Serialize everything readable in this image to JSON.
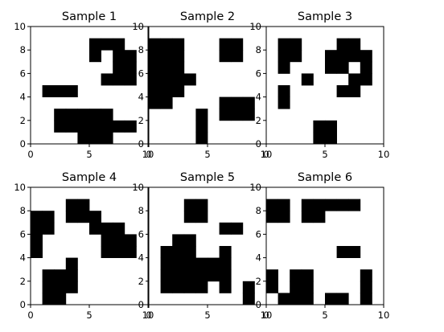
{
  "chart_data": {
    "type": "heatmap",
    "description_colors": {
      "filled": "#000000",
      "empty": "#ffffff",
      "axes": "#000000"
    },
    "panels": [
      {
        "title": "Sample 1",
        "xlim": [
          0,
          10
        ],
        "ylim": [
          0,
          10
        ],
        "xticks": [
          "0",
          "5",
          "10"
        ],
        "yticks": [
          "0",
          "2",
          "4",
          "6",
          "8",
          "10"
        ],
        "cells": [
          [
            5,
            8
          ],
          [
            6,
            8
          ],
          [
            7,
            8
          ],
          [
            5,
            7
          ],
          [
            7,
            7
          ],
          [
            8,
            7
          ],
          [
            7,
            6
          ],
          [
            8,
            6
          ],
          [
            6,
            5
          ],
          [
            7,
            5
          ],
          [
            8,
            5
          ],
          [
            1,
            4
          ],
          [
            2,
            4
          ],
          [
            3,
            4
          ],
          [
            2,
            2
          ],
          [
            3,
            2
          ],
          [
            4,
            2
          ],
          [
            5,
            2
          ],
          [
            6,
            2
          ],
          [
            2,
            1
          ],
          [
            3,
            1
          ],
          [
            4,
            1
          ],
          [
            5,
            1
          ],
          [
            6,
            1
          ],
          [
            7,
            1
          ],
          [
            8,
            1
          ],
          [
            4,
            0
          ],
          [
            5,
            0
          ],
          [
            6,
            0
          ]
        ]
      },
      {
        "title": "Sample 2",
        "xlim": [
          0,
          10
        ],
        "ylim": [
          0,
          10
        ],
        "xticks": [
          "0",
          "5",
          "10"
        ],
        "yticks": [
          "0",
          "2",
          "4",
          "6",
          "8",
          "10"
        ],
        "cells": [
          [
            0,
            8
          ],
          [
            1,
            8
          ],
          [
            2,
            8
          ],
          [
            6,
            8
          ],
          [
            7,
            8
          ],
          [
            0,
            7
          ],
          [
            1,
            7
          ],
          [
            2,
            7
          ],
          [
            6,
            7
          ],
          [
            7,
            7
          ],
          [
            0,
            6
          ],
          [
            1,
            6
          ],
          [
            2,
            6
          ],
          [
            0,
            5
          ],
          [
            1,
            5
          ],
          [
            2,
            5
          ],
          [
            3,
            5
          ],
          [
            0,
            4
          ],
          [
            1,
            4
          ],
          [
            2,
            4
          ],
          [
            0,
            3
          ],
          [
            1,
            3
          ],
          [
            6,
            3
          ],
          [
            7,
            3
          ],
          [
            8,
            3
          ],
          [
            6,
            2
          ],
          [
            7,
            2
          ],
          [
            8,
            2
          ],
          [
            4,
            2
          ],
          [
            4,
            1
          ],
          [
            4,
            0
          ]
        ]
      },
      {
        "title": "Sample 3",
        "xlim": [
          0,
          10
        ],
        "ylim": [
          0,
          10
        ],
        "xticks": [
          "0",
          "5",
          "10"
        ],
        "yticks": [
          "0",
          "2",
          "4",
          "6",
          "8",
          "10"
        ],
        "cells": [
          [
            1,
            8
          ],
          [
            2,
            8
          ],
          [
            6,
            8
          ],
          [
            7,
            8
          ],
          [
            1,
            7
          ],
          [
            2,
            7
          ],
          [
            5,
            7
          ],
          [
            6,
            7
          ],
          [
            7,
            7
          ],
          [
            8,
            7
          ],
          [
            1,
            6
          ],
          [
            5,
            6
          ],
          [
            6,
            6
          ],
          [
            8,
            6
          ],
          [
            3,
            5
          ],
          [
            7,
            5
          ],
          [
            8,
            5
          ],
          [
            6,
            4
          ],
          [
            7,
            4
          ],
          [
            1,
            4
          ],
          [
            1,
            3
          ],
          [
            4,
            1
          ],
          [
            5,
            1
          ],
          [
            4,
            0
          ],
          [
            5,
            0
          ]
        ]
      },
      {
        "title": "Sample 4",
        "xlim": [
          0,
          10
        ],
        "ylim": [
          0,
          10
        ],
        "xticks": [
          "0",
          "5",
          "10"
        ],
        "yticks": [
          "0",
          "2",
          "4",
          "6",
          "8",
          "10"
        ],
        "cells": [
          [
            3,
            8
          ],
          [
            4,
            8
          ],
          [
            0,
            7
          ],
          [
            1,
            7
          ],
          [
            3,
            7
          ],
          [
            4,
            7
          ],
          [
            5,
            7
          ],
          [
            0,
            6
          ],
          [
            1,
            6
          ],
          [
            5,
            6
          ],
          [
            6,
            6
          ],
          [
            7,
            6
          ],
          [
            0,
            5
          ],
          [
            6,
            5
          ],
          [
            7,
            5
          ],
          [
            8,
            5
          ],
          [
            0,
            4
          ],
          [
            6,
            4
          ],
          [
            7,
            4
          ],
          [
            8,
            4
          ],
          [
            3,
            3
          ],
          [
            1,
            2
          ],
          [
            2,
            2
          ],
          [
            3,
            2
          ],
          [
            1,
            1
          ],
          [
            2,
            1
          ],
          [
            3,
            1
          ],
          [
            1,
            0
          ],
          [
            2,
            0
          ]
        ]
      },
      {
        "title": "Sample 5",
        "xlim": [
          0,
          10
        ],
        "ylim": [
          0,
          10
        ],
        "xticks": [
          "0",
          "5",
          "10"
        ],
        "yticks": [
          "0",
          "2",
          "4",
          "6",
          "8",
          "10"
        ],
        "cells": [
          [
            3,
            8
          ],
          [
            4,
            8
          ],
          [
            3,
            7
          ],
          [
            4,
            7
          ],
          [
            6,
            6
          ],
          [
            7,
            6
          ],
          [
            2,
            5
          ],
          [
            3,
            5
          ],
          [
            1,
            4
          ],
          [
            2,
            4
          ],
          [
            3,
            4
          ],
          [
            6,
            4
          ],
          [
            1,
            3
          ],
          [
            2,
            3
          ],
          [
            3,
            3
          ],
          [
            4,
            3
          ],
          [
            5,
            3
          ],
          [
            6,
            3
          ],
          [
            1,
            2
          ],
          [
            2,
            2
          ],
          [
            3,
            2
          ],
          [
            4,
            2
          ],
          [
            5,
            2
          ],
          [
            6,
            2
          ],
          [
            1,
            1
          ],
          [
            2,
            1
          ],
          [
            3,
            1
          ],
          [
            4,
            1
          ],
          [
            6,
            1
          ],
          [
            8,
            1
          ],
          [
            8,
            0
          ]
        ]
      },
      {
        "title": "Sample 6",
        "xlim": [
          0,
          10
        ],
        "ylim": [
          0,
          10
        ],
        "xticks": [
          "0",
          "5",
          "10"
        ],
        "yticks": [
          "0",
          "2",
          "4",
          "6",
          "8",
          "10"
        ],
        "cells": [
          [
            0,
            8
          ],
          [
            1,
            8
          ],
          [
            3,
            8
          ],
          [
            4,
            8
          ],
          [
            5,
            8
          ],
          [
            6,
            8
          ],
          [
            7,
            8
          ],
          [
            0,
            7
          ],
          [
            1,
            7
          ],
          [
            3,
            7
          ],
          [
            4,
            7
          ],
          [
            6,
            4
          ],
          [
            7,
            4
          ],
          [
            0,
            2
          ],
          [
            2,
            2
          ],
          [
            3,
            2
          ],
          [
            8,
            2
          ],
          [
            0,
            1
          ],
          [
            2,
            1
          ],
          [
            3,
            1
          ],
          [
            8,
            1
          ],
          [
            1,
            0
          ],
          [
            2,
            0
          ],
          [
            3,
            0
          ],
          [
            5,
            0
          ],
          [
            6,
            0
          ],
          [
            8,
            0
          ]
        ]
      }
    ]
  }
}
